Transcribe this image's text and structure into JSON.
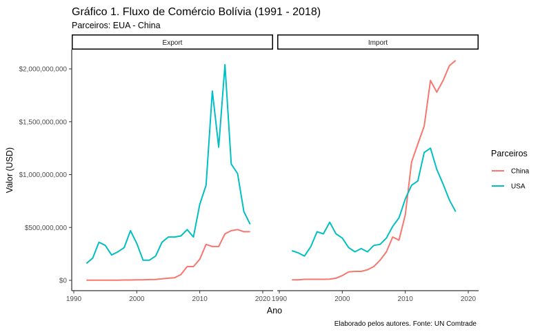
{
  "chart_data": {
    "type": "line",
    "title": "Gráfico 1. Fluxo de Comércio Bolívia (1991 - 2018)",
    "subtitle": "Parceiros: EUA - China",
    "xlabel": "Ano",
    "ylabel": "Valor (USD)",
    "caption": "Elaborado pelos autores. Fonte: UN Comtrade",
    "legend_title": "Parceiros",
    "legend_position": "right",
    "xlim": [
      1990,
      2020
    ],
    "ylim": [
      0,
      2000000000
    ],
    "x_ticks": [
      1990,
      2000,
      2010,
      2020
    ],
    "x_tick_labels": [
      "1990",
      "2000",
      "2010",
      "2020"
    ],
    "y_ticks": [
      0,
      500000000,
      1000000000,
      1500000000,
      2000000000
    ],
    "y_tick_labels": [
      "$0",
      "$500,000,000",
      "$1,000,000,000",
      "$1,500,000,000",
      "$2,000,000,000"
    ],
    "grid": false,
    "colors": {
      "China": "#F8766D",
      "USA": "#00BFC4"
    },
    "panels": [
      {
        "name": "Export",
        "series": [
          {
            "name": "China",
            "x": [
              1992,
              1993,
              1994,
              1995,
              1996,
              1997,
              1998,
              1999,
              2000,
              2001,
              2002,
              2003,
              2004,
              2005,
              2006,
              2007,
              2008,
              2009,
              2010,
              2011,
              2012,
              2013,
              2014,
              2015,
              2016,
              2017,
              2018
            ],
            "values": [
              2000000,
              2000000,
              2000000,
              2000000,
              2000000,
              2000000,
              3000000,
              3000000,
              5000000,
              5000000,
              7000000,
              8000000,
              15000000,
              20000000,
              25000000,
              55000000,
              130000000,
              130000000,
              200000000,
              340000000,
              320000000,
              320000000,
              440000000,
              470000000,
              480000000,
              460000000,
              460000000
            ]
          },
          {
            "name": "USA",
            "x": [
              1992,
              1993,
              1994,
              1995,
              1996,
              1997,
              1998,
              1999,
              2000,
              2001,
              2002,
              2003,
              2004,
              2005,
              2006,
              2007,
              2008,
              2009,
              2010,
              2011,
              2012,
              2013,
              2014,
              2015,
              2016,
              2017,
              2018
            ],
            "values": [
              160000000,
              210000000,
              360000000,
              330000000,
              240000000,
              270000000,
              310000000,
              470000000,
              350000000,
              190000000,
              190000000,
              230000000,
              360000000,
              410000000,
              410000000,
              420000000,
              480000000,
              410000000,
              720000000,
              900000000,
              1790000000,
              1260000000,
              2040000000,
              1100000000,
              1010000000,
              650000000,
              530000000
            ]
          }
        ]
      },
      {
        "name": "Import",
        "series": [
          {
            "name": "China",
            "x": [
              1992,
              1993,
              1994,
              1995,
              1996,
              1997,
              1998,
              1999,
              2000,
              2001,
              2002,
              2003,
              2004,
              2005,
              2006,
              2007,
              2008,
              2009,
              2010,
              2011,
              2012,
              2013,
              2014,
              2015,
              2016,
              2017,
              2018
            ],
            "values": [
              5000000,
              5000000,
              10000000,
              10000000,
              10000000,
              10000000,
              12000000,
              20000000,
              45000000,
              80000000,
              85000000,
              85000000,
              100000000,
              130000000,
              190000000,
              270000000,
              410000000,
              380000000,
              620000000,
              1120000000,
              1290000000,
              1460000000,
              1890000000,
              1780000000,
              1890000000,
              2030000000,
              2080000000
            ]
          },
          {
            "name": "USA",
            "x": [
              1992,
              1993,
              1994,
              1995,
              1996,
              1997,
              1998,
              1999,
              2000,
              2001,
              2002,
              2003,
              2004,
              2005,
              2006,
              2007,
              2008,
              2009,
              2010,
              2011,
              2012,
              2013,
              2014,
              2015,
              2016,
              2017,
              2018
            ],
            "values": [
              280000000,
              260000000,
              230000000,
              320000000,
              460000000,
              440000000,
              550000000,
              440000000,
              400000000,
              310000000,
              270000000,
              300000000,
              270000000,
              330000000,
              340000000,
              400000000,
              510000000,
              590000000,
              770000000,
              900000000,
              940000000,
              1210000000,
              1250000000,
              1050000000,
              910000000,
              760000000,
              650000000
            ]
          }
        ]
      }
    ]
  }
}
